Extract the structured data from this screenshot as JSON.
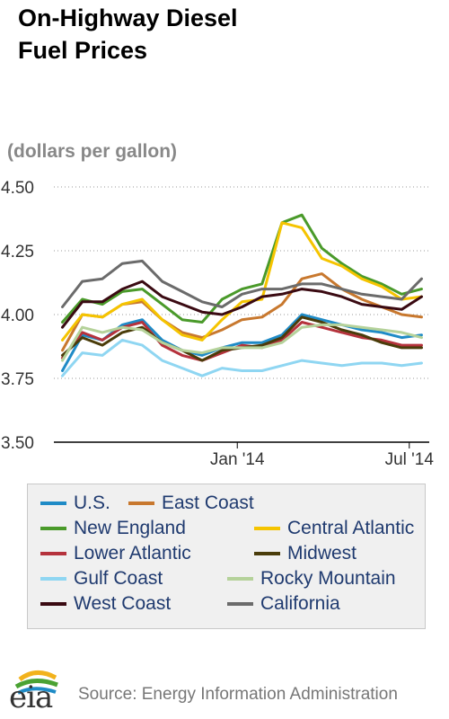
{
  "header": {
    "title_line1": "On-Highway Diesel",
    "title_line2": "Fuel Prices",
    "unit": "(dollars per gallon)"
  },
  "chart_data": {
    "type": "line",
    "title": "On-Highway Diesel Fuel Prices",
    "ylabel": "(dollars per gallon)",
    "ylim": [
      3.5,
      4.5
    ],
    "yticks": [
      "4.50",
      "4.25",
      "4.00",
      "3.75",
      "3.50"
    ],
    "xticks": [
      "Jan '14",
      "Jul '14"
    ],
    "grid": "horizontal dotted",
    "legend_position": "bottom",
    "x": [
      "2013-07-01",
      "2013-07-22",
      "2013-08-12",
      "2013-09-02",
      "2013-09-23",
      "2013-10-14",
      "2013-11-04",
      "2013-11-25",
      "2013-12-16",
      "2014-01-06",
      "2014-01-27",
      "2014-02-17",
      "2014-03-10",
      "2014-03-31",
      "2014-04-21",
      "2014-05-12",
      "2014-06-02",
      "2014-06-23",
      "2014-07-14"
    ],
    "series": [
      {
        "name": "U.S.",
        "color": "#1f8bc6",
        "values": [
          3.78,
          3.92,
          3.9,
          3.96,
          3.98,
          3.9,
          3.86,
          3.84,
          3.87,
          3.89,
          3.89,
          3.92,
          4.0,
          3.98,
          3.96,
          3.94,
          3.93,
          3.91,
          3.92
        ]
      },
      {
        "name": "East Coast",
        "color": "#c8782e",
        "values": [
          3.86,
          4.0,
          3.99,
          4.04,
          4.05,
          3.98,
          3.93,
          3.91,
          3.94,
          3.98,
          3.99,
          4.04,
          4.14,
          4.16,
          4.1,
          4.06,
          4.03,
          4.0,
          3.99
        ]
      },
      {
        "name": "New England",
        "color": "#4a9a2a",
        "values": [
          3.97,
          4.06,
          4.04,
          4.09,
          4.1,
          4.04,
          3.98,
          3.97,
          4.06,
          4.1,
          4.12,
          4.36,
          4.39,
          4.26,
          4.2,
          4.15,
          4.12,
          4.08,
          4.1
        ]
      },
      {
        "name": "Central Atlantic",
        "color": "#f5c400",
        "values": [
          3.9,
          4.0,
          3.99,
          4.04,
          4.06,
          3.98,
          3.92,
          3.9,
          3.98,
          4.05,
          4.06,
          4.36,
          4.34,
          4.22,
          4.19,
          4.14,
          4.11,
          4.06,
          4.07
        ]
      },
      {
        "name": "Lower Atlantic",
        "color": "#b5323c",
        "values": [
          3.83,
          3.93,
          3.9,
          3.95,
          3.97,
          3.88,
          3.84,
          3.82,
          3.85,
          3.88,
          3.87,
          3.9,
          3.97,
          3.95,
          3.93,
          3.91,
          3.9,
          3.88,
          3.88
        ]
      },
      {
        "name": "Midwest",
        "color": "#4a3c0a",
        "values": [
          3.84,
          3.91,
          3.88,
          3.93,
          3.95,
          3.89,
          3.86,
          3.82,
          3.86,
          3.87,
          3.88,
          3.91,
          3.99,
          3.97,
          3.94,
          3.92,
          3.89,
          3.87,
          3.87
        ]
      },
      {
        "name": "Gulf Coast",
        "color": "#8fd6f2",
        "values": [
          3.76,
          3.85,
          3.84,
          3.9,
          3.88,
          3.82,
          3.79,
          3.76,
          3.79,
          3.78,
          3.78,
          3.8,
          3.82,
          3.81,
          3.8,
          3.81,
          3.81,
          3.8,
          3.81
        ]
      },
      {
        "name": "Rocky Mountain",
        "color": "#b5d29a",
        "values": [
          3.82,
          3.95,
          3.93,
          3.95,
          3.94,
          3.89,
          3.86,
          3.85,
          3.87,
          3.87,
          3.87,
          3.89,
          3.95,
          3.96,
          3.96,
          3.95,
          3.94,
          3.93,
          3.91
        ]
      },
      {
        "name": "West Coast",
        "color": "#3a0a12",
        "values": [
          3.95,
          4.05,
          4.05,
          4.1,
          4.13,
          4.07,
          4.04,
          4.01,
          4.0,
          4.03,
          4.07,
          4.08,
          4.1,
          4.09,
          4.07,
          4.04,
          4.03,
          4.02,
          4.07
        ]
      },
      {
        "name": "California",
        "color": "#6b6b6b",
        "values": [
          4.03,
          4.13,
          4.14,
          4.2,
          4.21,
          4.13,
          4.09,
          4.05,
          4.03,
          4.08,
          4.1,
          4.1,
          4.12,
          4.12,
          4.1,
          4.08,
          4.07,
          4.06,
          4.14
        ]
      }
    ]
  },
  "source": "Source: Energy Information Administration",
  "logo_text": "eia"
}
